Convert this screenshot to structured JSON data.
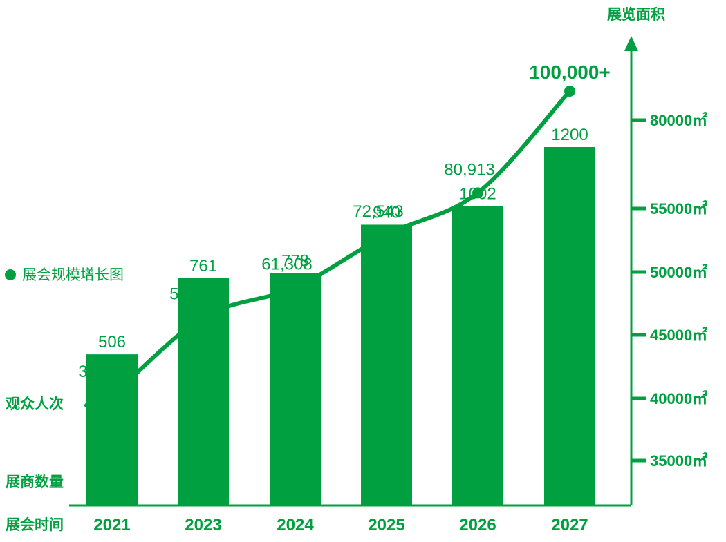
{
  "chart_data": {
    "type": "bar",
    "categories": [
      "2021",
      "2023",
      "2024",
      "2025",
      "2026",
      "2027"
    ],
    "bar_series": {
      "name": "展商数量",
      "values": [
        506,
        761,
        778,
        940,
        1002,
        1200
      ],
      "labels": [
        "506",
        "761",
        "778",
        "940",
        "1002",
        "1200"
      ]
    },
    "line_series": {
      "name": "观众人次",
      "values": [
        31453,
        54506,
        61308,
        72543,
        80913,
        100000
      ],
      "labels": [
        "31,453",
        "54,506",
        "61,308",
        "72,543",
        "80,913",
        "100,000+"
      ]
    },
    "x_label": "展会时间",
    "right_axis": {
      "label": "展览面积",
      "ticks": [
        "35000㎡",
        "40000㎡",
        "45000㎡",
        "50000㎡",
        "55000㎡",
        "80000㎡"
      ]
    },
    "legend": "展会规模增长图",
    "grid": false,
    "colors": {
      "primary": "#00a040"
    }
  }
}
